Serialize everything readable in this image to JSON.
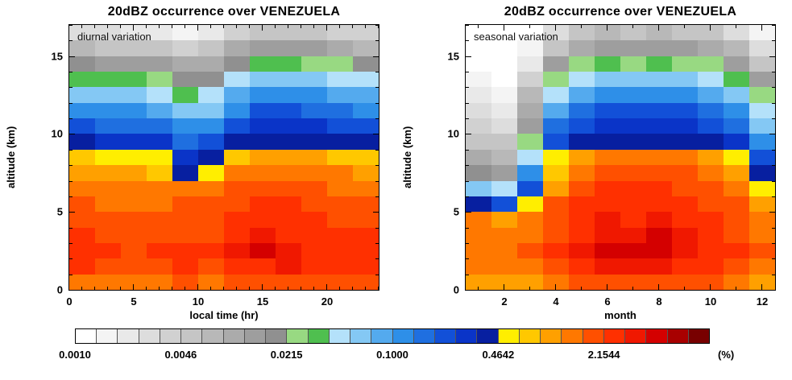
{
  "figure": {
    "unit_label": "(%)",
    "colorbar": {
      "tick_labels": [
        "0.0010",
        "0.0046",
        "0.0215",
        "0.1000",
        "0.4642",
        "2.1544"
      ],
      "tick_positions": [
        0,
        5,
        10,
        15,
        20,
        25
      ],
      "range_log10": [
        -3,
        1
      ],
      "colors": [
        "#ffffff",
        "#f4f4f4",
        "#e9e9e9",
        "#dddddd",
        "#d1d1d1",
        "#c5c5c5",
        "#b8b8b8",
        "#ababab",
        "#9e9e9e",
        "#909090",
        "#98d982",
        "#4fbf4f",
        "#b4e1fa",
        "#84c8f4",
        "#54aaee",
        "#2e8fe8",
        "#1f6fe0",
        "#1250d8",
        "#0a34c8",
        "#071fa0",
        "#ffee00",
        "#ffc800",
        "#ffa000",
        "#ff7800",
        "#ff5000",
        "#ff3000",
        "#f01800",
        "#d40000",
        "#a80000",
        "#780000"
      ]
    }
  },
  "chart_data": [
    {
      "type": "heatmap",
      "title": "20dBZ occurrence over VENEZUELA",
      "annotation": "diurnal variation",
      "xlabel": "local time (hr)",
      "ylabel": "altitude (km)",
      "x_range": [
        0,
        24
      ],
      "x_ticks": [
        0,
        5,
        10,
        15,
        20
      ],
      "x_minor_step": 1,
      "x_bin_hours": 2,
      "y_range": [
        0,
        17
      ],
      "y_ticks": [
        0,
        5,
        10,
        15
      ],
      "y_minor_step": 1,
      "y_bin_km": 1,
      "values_unit": "percent",
      "values_percent_rows_bottom_to_top": [
        [
          1.5,
          1.4,
          1.4,
          1.5,
          1.6,
          1.5,
          1.7,
          1.9,
          2.0,
          1.9,
          1.7,
          1.6
        ],
        [
          2.2,
          2.0,
          2.0,
          2.1,
          2.2,
          2.1,
          2.4,
          2.9,
          3.0,
          2.8,
          2.5,
          2.3
        ],
        [
          2.4,
          2.2,
          2.1,
          2.2,
          2.3,
          2.3,
          3.4,
          4.2,
          3.2,
          2.9,
          2.6,
          2.5
        ],
        [
          2.2,
          2.0,
          1.9,
          2.0,
          2.1,
          2.1,
          2.8,
          3.2,
          2.9,
          2.6,
          2.4,
          2.3
        ],
        [
          1.9,
          1.8,
          1.7,
          1.8,
          1.9,
          1.9,
          2.3,
          2.6,
          2.5,
          2.3,
          2.1,
          2.0
        ],
        [
          1.6,
          1.5,
          1.5,
          1.5,
          1.6,
          1.6,
          1.9,
          2.2,
          2.2,
          2.0,
          1.8,
          1.7
        ],
        [
          1.3,
          1.2,
          1.2,
          1.2,
          1.3,
          1.3,
          1.6,
          1.9,
          1.9,
          1.7,
          1.5,
          1.4
        ],
        [
          1.0,
          0.95,
          0.9,
          0.85,
          0.45,
          0.55,
          1.2,
          1.5,
          1.5,
          1.4,
          1.2,
          1.1
        ],
        [
          0.7,
          0.6,
          0.55,
          0.5,
          0.28,
          0.35,
          0.8,
          1.0,
          1.0,
          0.9,
          0.8,
          0.75
        ],
        [
          0.35,
          0.3,
          0.3,
          0.28,
          0.18,
          0.22,
          0.4,
          0.44,
          0.45,
          0.42,
          0.4,
          0.38
        ],
        [
          0.2,
          0.18,
          0.17,
          0.16,
          0.1,
          0.12,
          0.22,
          0.3,
          0.32,
          0.28,
          0.24,
          0.22
        ],
        [
          0.12,
          0.11,
          0.1,
          0.09,
          0.06,
          0.07,
          0.13,
          0.2,
          0.22,
          0.18,
          0.15,
          0.13
        ],
        [
          0.07,
          0.065,
          0.06,
          0.05,
          0.035,
          0.04,
          0.08,
          0.12,
          0.13,
          0.11,
          0.09,
          0.08
        ],
        [
          0.035,
          0.03,
          0.03,
          0.025,
          0.018,
          0.02,
          0.04,
          0.06,
          0.07,
          0.055,
          0.045,
          0.04
        ],
        [
          0.016,
          0.014,
          0.013,
          0.012,
          0.009,
          0.01,
          0.02,
          0.03,
          0.032,
          0.026,
          0.022,
          0.018
        ],
        [
          0.007,
          0.006,
          0.006,
          0.005,
          0.004,
          0.005,
          0.009,
          0.013,
          0.014,
          0.012,
          0.01,
          0.008
        ],
        [
          0.003,
          0.0028,
          0.0025,
          0.002,
          0.0015,
          0.002,
          0.004,
          0.006,
          0.006,
          0.005,
          0.0045,
          0.0035
        ]
      ]
    },
    {
      "type": "heatmap",
      "title": "20dBZ occurrence over VENEZUELA",
      "annotation": "seasonal variation",
      "xlabel": "month",
      "ylabel": "altitude (km)",
      "x_range": [
        0.5,
        12.5
      ],
      "x_ticks": [
        2,
        4,
        6,
        8,
        10,
        12
      ],
      "x_minor_step": 1,
      "x_bin_months": 1,
      "y_range": [
        0,
        17
      ],
      "y_ticks": [
        0,
        5,
        10,
        15
      ],
      "y_minor_step": 1,
      "y_bin_km": 1,
      "values_unit": "percent",
      "values_percent_rows_bottom_to_top": [
        [
          1.0,
          0.9,
          1.1,
          1.4,
          1.7,
          1.8,
          1.8,
          1.9,
          1.8,
          1.6,
          1.4,
          1.1
        ],
        [
          1.4,
          1.2,
          1.5,
          2.0,
          2.6,
          3.2,
          3.0,
          3.2,
          2.8,
          2.4,
          2.0,
          1.5
        ],
        [
          1.5,
          1.3,
          1.6,
          2.2,
          3.0,
          4.5,
          4.2,
          4.6,
          3.2,
          2.6,
          2.2,
          1.6
        ],
        [
          1.4,
          1.2,
          1.5,
          2.1,
          2.8,
          3.8,
          3.6,
          4.0,
          3.0,
          2.5,
          2.1,
          1.5
        ],
        [
          1.2,
          1.0,
          1.3,
          1.9,
          2.5,
          3.0,
          2.9,
          3.1,
          2.7,
          2.3,
          1.9,
          1.3
        ],
        [
          0.35,
          0.25,
          0.6,
          1.6,
          2.2,
          2.6,
          2.5,
          2.7,
          2.4,
          2.0,
          1.6,
          0.9
        ],
        [
          0.06,
          0.04,
          0.25,
          1.1,
          1.9,
          2.3,
          2.2,
          2.4,
          2.1,
          1.7,
          1.3,
          0.6
        ],
        [
          0.02,
          0.015,
          0.1,
          0.8,
          1.5,
          1.9,
          1.8,
          2.0,
          1.7,
          1.4,
          1.0,
          0.4
        ],
        [
          0.01,
          0.008,
          0.05,
          0.5,
          1.0,
          1.3,
          1.2,
          1.4,
          1.2,
          0.9,
          0.6,
          0.2
        ],
        [
          0.006,
          0.005,
          0.025,
          0.25,
          0.4,
          0.42,
          0.4,
          0.44,
          0.42,
          0.38,
          0.3,
          0.1
        ],
        [
          0.004,
          0.003,
          0.015,
          0.15,
          0.25,
          0.3,
          0.28,
          0.3,
          0.28,
          0.24,
          0.18,
          0.06
        ],
        [
          0.003,
          0.002,
          0.01,
          0.09,
          0.16,
          0.2,
          0.19,
          0.21,
          0.19,
          0.16,
          0.11,
          0.04
        ],
        [
          0.002,
          0.0018,
          0.007,
          0.05,
          0.09,
          0.12,
          0.11,
          0.13,
          0.11,
          0.09,
          0.06,
          0.025
        ],
        [
          0.0015,
          0.0013,
          0.004,
          0.025,
          0.05,
          0.065,
          0.06,
          0.07,
          0.06,
          0.05,
          0.03,
          0.012
        ],
        [
          0.0012,
          0.001,
          0.0025,
          0.012,
          0.022,
          0.03,
          0.028,
          0.032,
          0.028,
          0.022,
          0.014,
          0.006
        ],
        [
          0.001,
          0.001,
          0.0015,
          0.006,
          0.01,
          0.014,
          0.013,
          0.015,
          0.013,
          0.01,
          0.007,
          0.003
        ],
        [
          0.001,
          0.001,
          0.001,
          0.003,
          0.005,
          0.007,
          0.006,
          0.007,
          0.006,
          0.005,
          0.003,
          0.0015
        ]
      ]
    }
  ]
}
